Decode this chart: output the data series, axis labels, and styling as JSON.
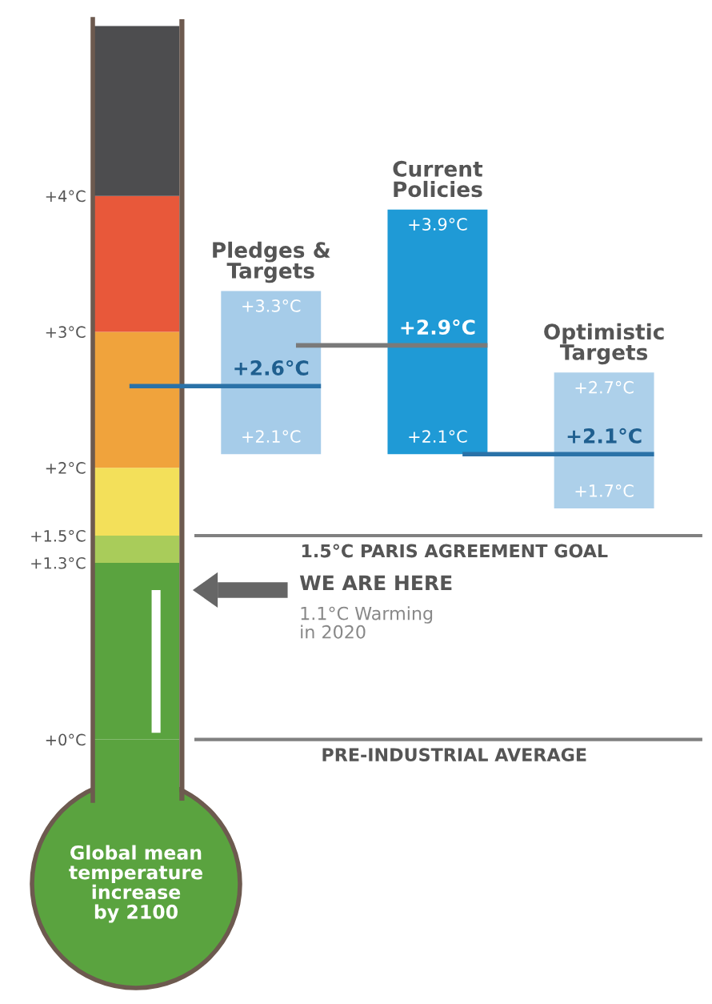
{
  "chart_data": {
    "type": "bar",
    "categories": [
      "Pledges & Targets",
      "Current Policies",
      "Optimistic Targets"
    ],
    "base": [
      2.1,
      2.1,
      1.7
    ],
    "values": [
      1.2,
      1.8,
      1.0
    ],
    "colors": [
      "#a6cce9",
      "#1f9ad6",
      "#add0ea"
    ],
    "ylabel": "Global mean\ntemperature\nincrease\nby 2100",
    "ylim": [
      -0.45,
      5.3
    ],
    "yticks": [
      {
        "value": 0,
        "label": "+0°C"
      },
      {
        "value": 1.3,
        "label": "+1.3°C"
      },
      {
        "value": 1.5,
        "label": "+1.5°C"
      },
      {
        "value": 2,
        "label": "+2°C"
      },
      {
        "value": 3,
        "label": "+3°C"
      },
      {
        "value": 4,
        "label": "+4°C"
      }
    ],
    "ref_lines": [
      {
        "axis": "y",
        "value": 2.6,
        "label": "+2.6°C",
        "color": "#2a72a8"
      },
      {
        "axis": "y",
        "value": 2.9,
        "label": "+2.9°C",
        "color": "#7a7a7a"
      },
      {
        "axis": "y",
        "value": 2.1,
        "label": "+2.1°C",
        "color": "#2a72a8"
      },
      {
        "axis": "y",
        "value": 1.5,
        "label": "1.5°C PARIS AGREEMENT GOAL",
        "color": "#808080"
      },
      {
        "axis": "y",
        "value": 0,
        "label": "PRE-INDUSTRIAL AVERAGE",
        "color": "#808080"
      },
      {
        "axis": "y",
        "value": 1.1,
        "label": "WE ARE HERE",
        "color": "#666666"
      }
    ],
    "annotations": [
      {
        "text": "+3.3°C",
        "x": "Pledges & Targets",
        "y": 3.3
      },
      {
        "text": "+2.1°C",
        "x": "Pledges & Targets",
        "y": 2.1
      },
      {
        "text": "+3.9°C",
        "x": "Current Policies",
        "y": 3.9
      },
      {
        "text": "+2.1°C",
        "x": "Current Policies",
        "y": 2.1
      },
      {
        "text": "+2.7°C",
        "x": "Optimistic Targets",
        "y": 2.7
      },
      {
        "text": "+1.7°C",
        "x": "Optimistic Targets",
        "y": 1.7
      },
      "1.1°C Warming\nin 2020"
    ]
  }
}
